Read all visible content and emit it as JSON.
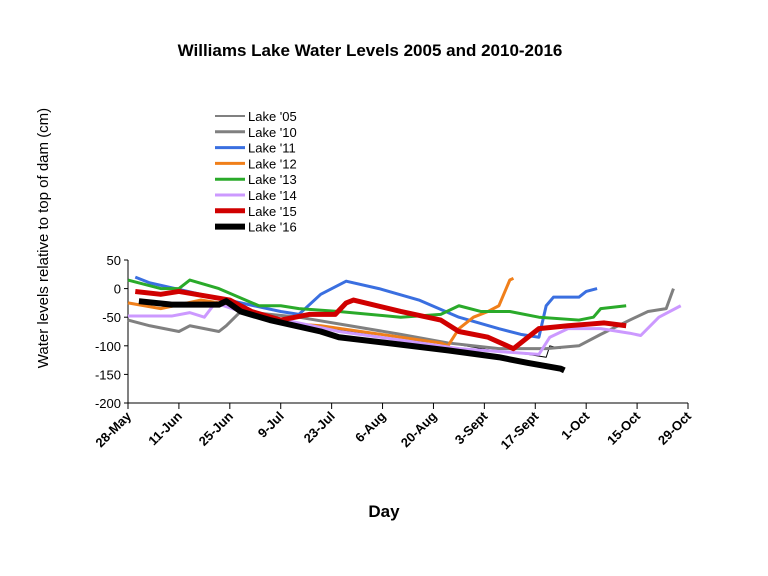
{
  "chart_data": {
    "type": "line",
    "title": "Williams Lake Water Levels 2005 and 2010-2016",
    "xlabel": "Day",
    "ylabel": "Water levels relative to top of dam (cm)",
    "xlim": [
      0,
      154
    ],
    "xticks": [
      {
        "value": 0,
        "label": "28-May"
      },
      {
        "value": 14,
        "label": "11-Jun"
      },
      {
        "value": 28,
        "label": "25-Jun"
      },
      {
        "value": 42,
        "label": "9-Jul"
      },
      {
        "value": 56,
        "label": "23-Jul"
      },
      {
        "value": 70,
        "label": "6-Aug"
      },
      {
        "value": 84,
        "label": "20-Aug"
      },
      {
        "value": 98,
        "label": "3-Sept"
      },
      {
        "value": 112,
        "label": "17-Sept"
      },
      {
        "value": 126,
        "label": "1-Oct"
      },
      {
        "value": 140,
        "label": "15-Oct"
      },
      {
        "value": 154,
        "label": "29-Oct"
      }
    ],
    "ylim": [
      -200,
      50
    ],
    "yticks": [
      50,
      0,
      -50,
      -100,
      -150,
      -200
    ],
    "legend": "upper left",
    "series": [
      {
        "name": "Lake '05",
        "color": "#000000",
        "line_width": 1,
        "x": [
          28,
          36,
          47,
          61,
          75,
          88,
          102,
          110,
          115,
          116,
          119
        ],
        "values": [
          -30,
          -45,
          -60,
          -75,
          -90,
          -95,
          -110,
          -115,
          -120,
          -100,
          -105
        ]
      },
      {
        "name": "Lake '10",
        "color": "#808080",
        "line_width": 3,
        "x": [
          0,
          6,
          14,
          17,
          25,
          27,
          31,
          47,
          61,
          75,
          88,
          102,
          115,
          124,
          130,
          138,
          143,
          148,
          150
        ],
        "values": [
          -55,
          -65,
          -75,
          -65,
          -75,
          -65,
          -40,
          -50,
          -65,
          -80,
          -95,
          -105,
          -105,
          -100,
          -80,
          -55,
          -40,
          -35,
          0
        ]
      },
      {
        "name": "Lake '11",
        "color": "#3a6fe0",
        "line_width": 3,
        "x": [
          2,
          6,
          20,
          31,
          42,
          47,
          53,
          60,
          69,
          80,
          91,
          102,
          108,
          113,
          115,
          117,
          124,
          126,
          129
        ],
        "values": [
          20,
          10,
          -10,
          -25,
          -40,
          -45,
          -10,
          13,
          0,
          -20,
          -50,
          -70,
          -80,
          -85,
          -30,
          -15,
          -15,
          -5,
          0
        ]
      },
      {
        "name": "Lake '12",
        "color": "#f07f1a",
        "line_width": 3,
        "x": [
          0,
          9,
          20,
          25,
          31,
          42,
          53,
          64,
          75,
          86,
          88,
          91,
          95,
          99,
          102,
          104,
          105,
          106
        ],
        "values": [
          -25,
          -35,
          -20,
          -25,
          -40,
          -60,
          -65,
          -75,
          -85,
          -95,
          -100,
          -70,
          -50,
          -40,
          -30,
          0,
          15,
          18
        ]
      },
      {
        "name": "Lake '13",
        "color": "#2aaa2a",
        "line_width": 3,
        "x": [
          0,
          9,
          14,
          17,
          25,
          36,
          42,
          47,
          58,
          75,
          86,
          91,
          97,
          105,
          113,
          124,
          128,
          130,
          137
        ],
        "values": [
          15,
          0,
          0,
          15,
          0,
          -30,
          -30,
          -35,
          -40,
          -50,
          -45,
          -30,
          -40,
          -40,
          -50,
          -55,
          -50,
          -35,
          -30
        ]
      },
      {
        "name": "Lake '14",
        "color": "#cc99ff",
        "line_width": 3,
        "x": [
          0,
          12,
          17,
          21,
          24,
          31,
          47,
          58,
          75,
          91,
          102,
          113,
          116,
          121,
          130,
          138,
          141,
          146,
          152
        ],
        "values": [
          -48,
          -48,
          -42,
          -50,
          -25,
          -40,
          -60,
          -75,
          -90,
          -105,
          -110,
          -115,
          -85,
          -70,
          -70,
          -78,
          -82,
          -50,
          -30
        ]
      },
      {
        "name": "Lake '15",
        "color": "#d00000",
        "line_width": 5,
        "x": [
          2,
          9,
          14,
          28,
          34,
          42,
          50,
          57,
          60,
          62,
          75,
          86,
          91,
          99,
          106,
          110,
          113,
          121,
          127,
          131,
          137
        ],
        "values": [
          -5,
          -10,
          -5,
          -20,
          -40,
          -55,
          -45,
          -45,
          -25,
          -20,
          -40,
          -55,
          -75,
          -85,
          -105,
          -85,
          -70,
          -65,
          -62,
          -60,
          -65
        ]
      },
      {
        "name": "Lake '16",
        "color": "#000000",
        "line_width": 6,
        "x": [
          3,
          12,
          25,
          27,
          31,
          39,
          53,
          58,
          75,
          88,
          102,
          110,
          119,
          120
        ],
        "values": [
          -22,
          -28,
          -28,
          -22,
          -40,
          -55,
          -75,
          -85,
          -98,
          -108,
          -120,
          -130,
          -140,
          -143
        ]
      }
    ]
  }
}
